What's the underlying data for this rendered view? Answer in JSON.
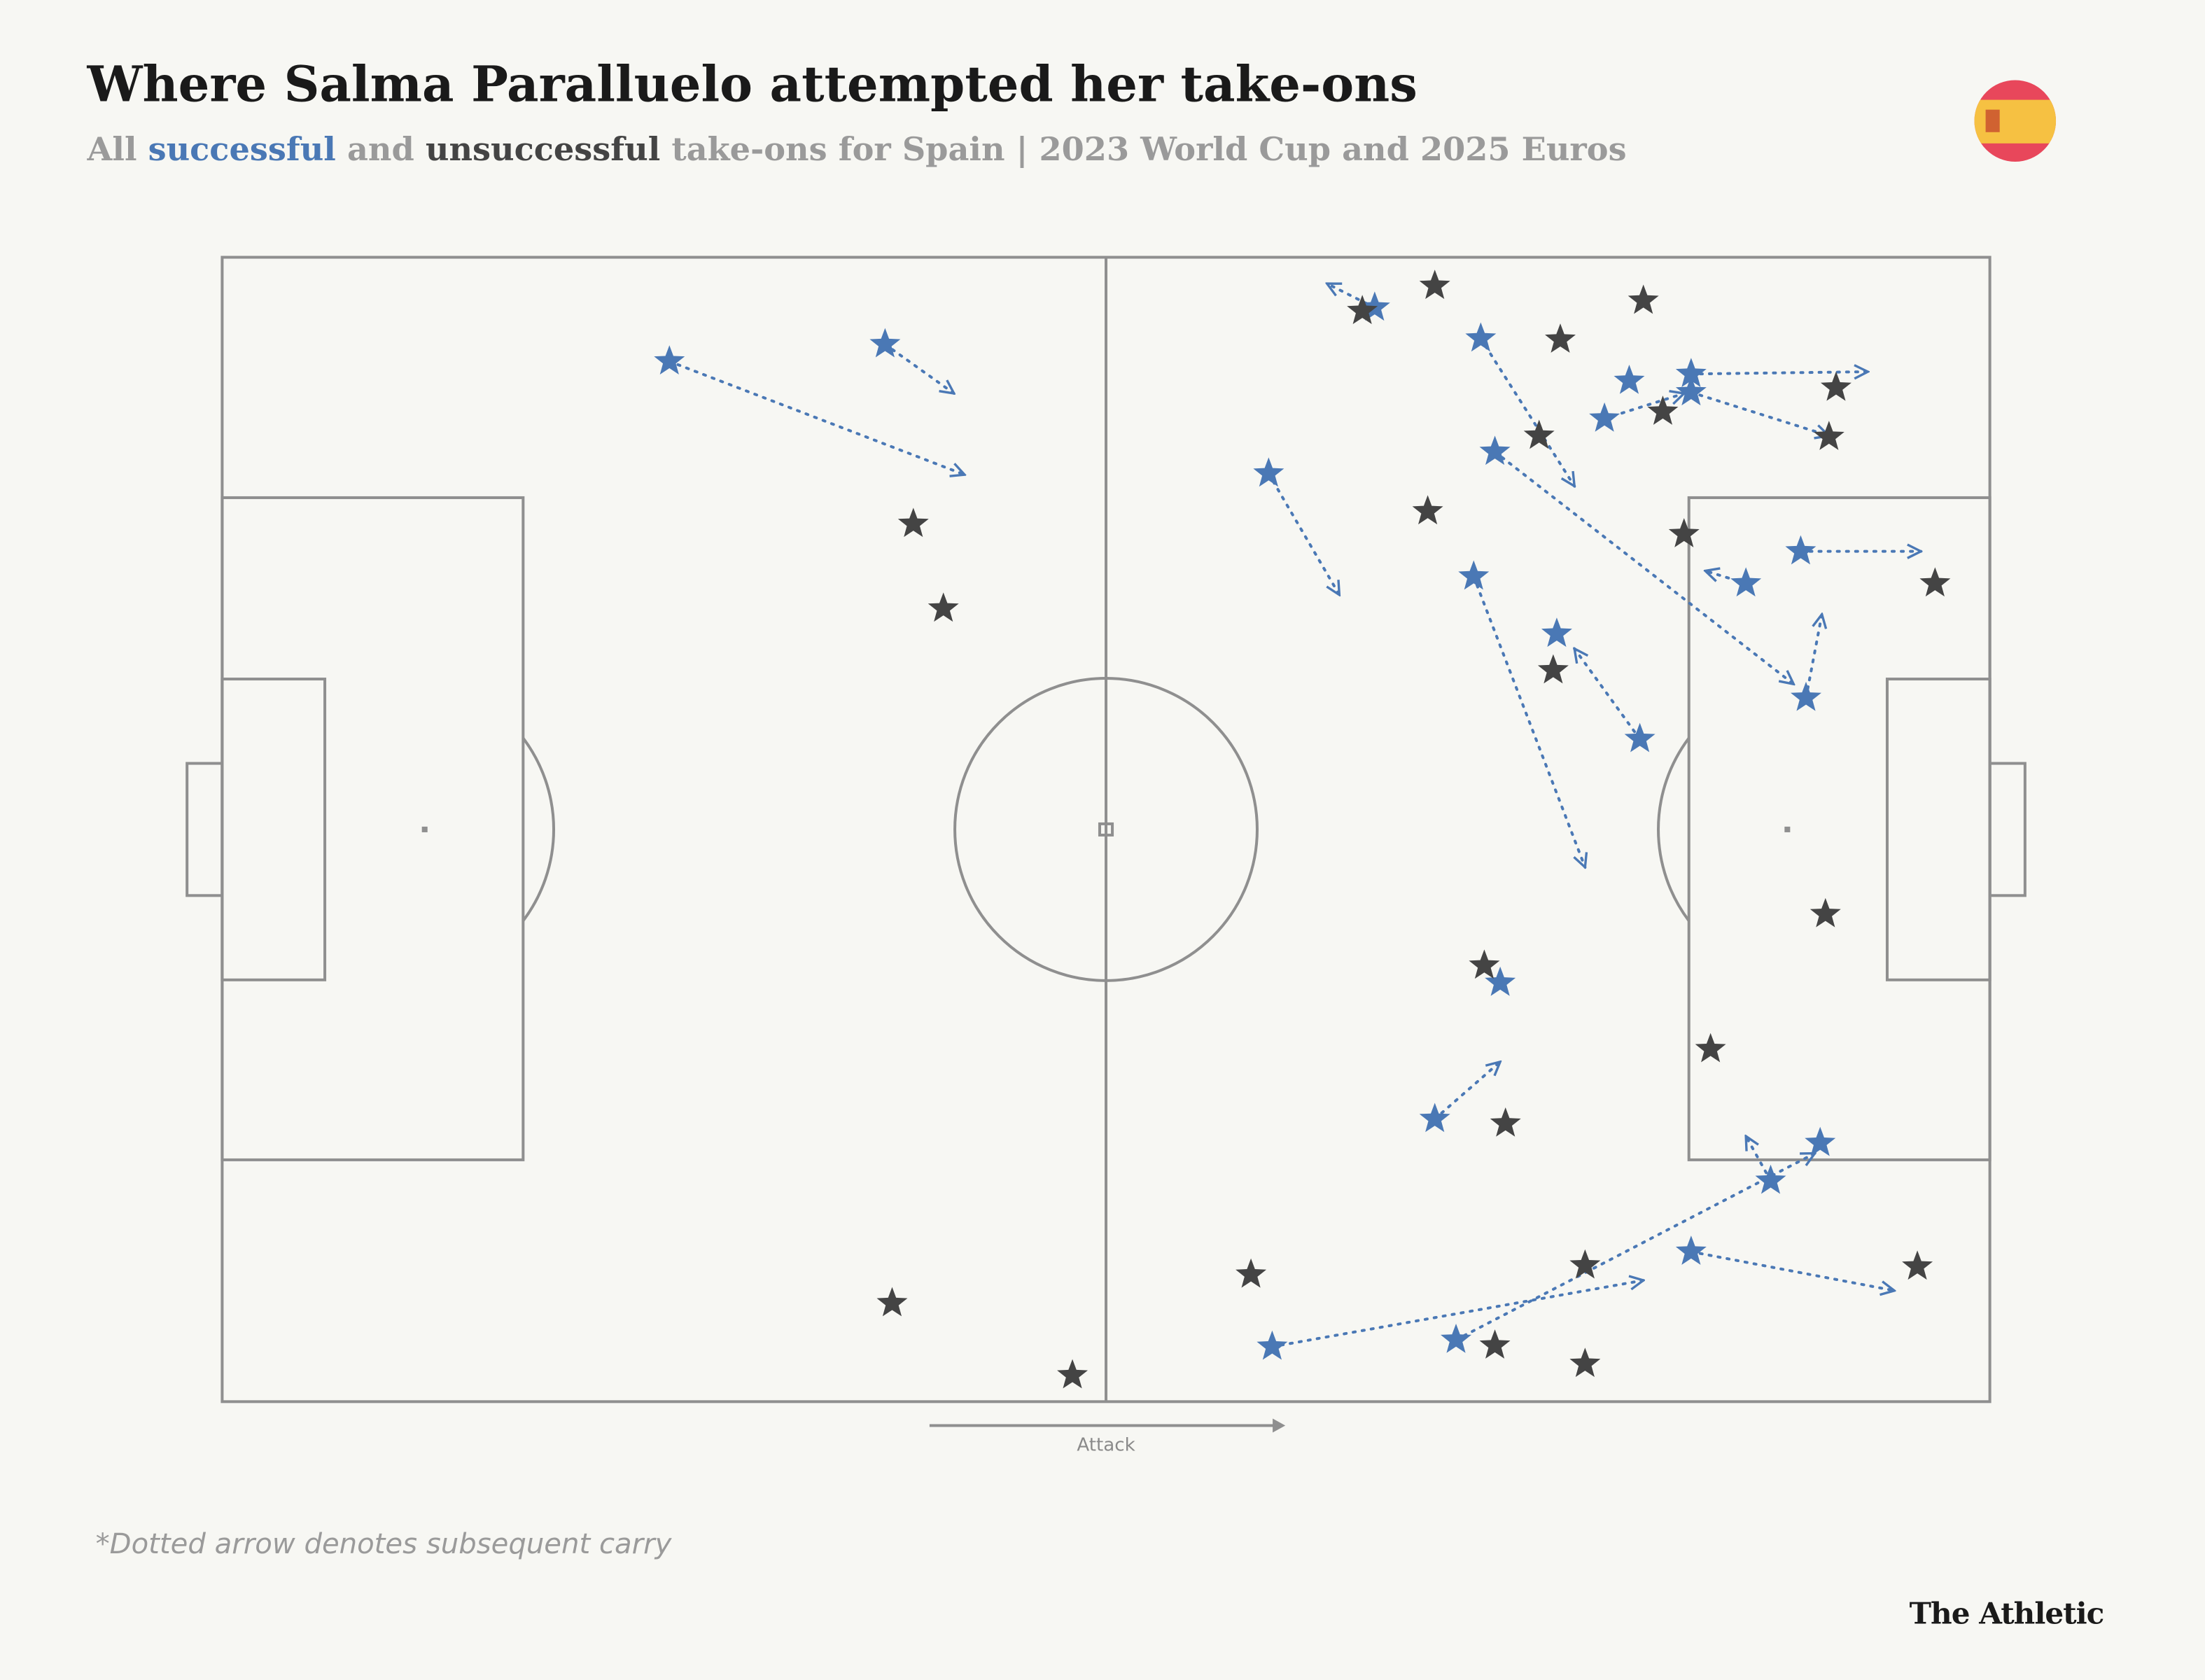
{
  "chart_data": {
    "type": "scatter",
    "title": "Where Salma Paralluelo attempted her take-ons",
    "subtitle_parts": [
      "All",
      "and",
      "take-ons for Spain | 2023 World Cup and 2025 Euros"
    ],
    "direction_label": "Attack",
    "footnote": "*Dotted arrow denotes subsequent carry",
    "source": "The Athletic",
    "xlim": [
      0,
      100
    ],
    "ylim": [
      0,
      100
    ],
    "series": [
      {
        "name": "successful",
        "color": "#4a78b5",
        "x": [
          25.3,
          37.5,
          59.2,
          65.2,
          71.2,
          72.0,
          89.6,
          78.2,
          79.6,
          83.1,
          83.1,
          89.3,
          86.2,
          70.8,
          75.5,
          80.2,
          72.3,
          68.6,
          59.4,
          69.8,
          87.6,
          90.4,
          83.1
        ],
        "y": [
          90.9,
          92.4,
          81.1,
          95.6,
          92.9,
          83.0,
          61.5,
          85.9,
          89.2,
          89.8,
          88.2,
          74.3,
          71.5,
          72.1,
          67.1,
          57.9,
          36.6,
          24.7,
          4.8,
          5.4,
          19.3,
          22.6,
          13.1
        ],
        "end_x": [
          42.0,
          41.4,
          63.2,
          62.5,
          76.5,
          88.9,
          90.5,
          82.7,
          null,
          93.1,
          90.9,
          96.1,
          83.9,
          77.1,
          null,
          76.5,
          null,
          72.3,
          80.4,
          90.1,
          86.2,
          null,
          94.6
        ],
        "end_y": [
          81.0,
          88.1,
          70.5,
          97.7,
          80.0,
          62.7,
          68.8,
          88.1,
          null,
          90.0,
          84.4,
          74.3,
          72.6,
          46.7,
          null,
          65.8,
          null,
          29.7,
          10.6,
          21.7,
          23.2,
          null,
          9.7
        ]
      },
      {
        "name": "unsuccessful",
        "color": "#444444",
        "x": [
          39.1,
          40.8,
          37.9,
          48.1,
          64.5,
          68.6,
          80.4,
          75.7,
          91.3,
          81.5,
          90.9,
          74.5,
          68.2,
          82.7,
          96.9,
          75.3,
          71.4,
          90.7,
          84.2,
          72.6,
          58.2,
          77.1,
          95.9,
          72.0,
          77.1
        ],
        "y": [
          76.7,
          69.3,
          8.6,
          2.3,
          95.3,
          97.5,
          96.2,
          92.8,
          88.6,
          86.5,
          84.3,
          84.4,
          77.8,
          75.8,
          71.5,
          63.9,
          38.1,
          42.6,
          30.8,
          24.3,
          11.1,
          11.9,
          11.8,
          4.9,
          3.3
        ]
      }
    ]
  }
}
